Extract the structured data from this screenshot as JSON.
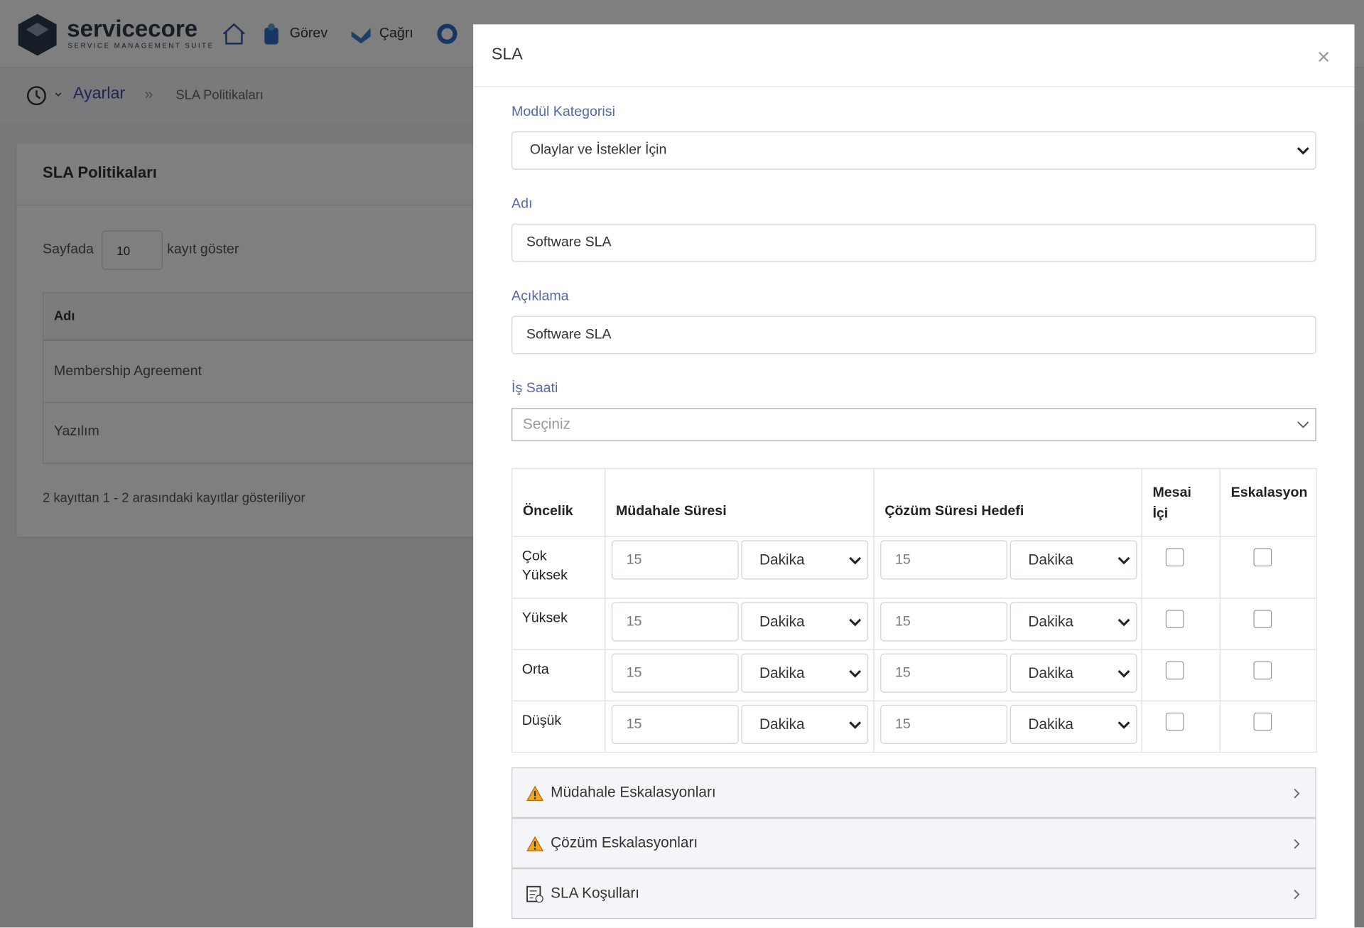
{
  "header": {
    "logo": "servicecore",
    "logo_tagline": "SERVICE MANAGEMENT SUITE",
    "nav": [
      "Görev",
      "Çağrı"
    ]
  },
  "breadcrumb": {
    "section": "Ayarlar",
    "page": "SLA Politikaları"
  },
  "panel": {
    "title": "SLA Politikaları",
    "length_prefix": "Sayfada",
    "length_value": 10,
    "length_suffix": "kayıt göster",
    "table": {
      "header": "Adı",
      "rows": [
        "Membership Agreement",
        "Yazılım"
      ]
    },
    "info": "2 kayıttan 1 - 2 arasındaki kayıtlar gösteriliyor"
  },
  "modal": {
    "title": "SLA",
    "close": "×",
    "fields": [
      {
        "label": "Modül Kategorisi",
        "value": "Olaylar ve İstekler İçin"
      },
      {
        "label": "Adı",
        "value": "Software SLA"
      },
      {
        "label": "Açıklama",
        "value": "Software SLA"
      },
      {
        "label": "İş Saati",
        "placeholder": "Seçiniz"
      }
    ],
    "table": {
      "headers": [
        "Öncelik",
        "Müdahale Süresi",
        "Çözüm Süresi Hedefi",
        "Mesai İçi",
        "Eskalasyon"
      ],
      "rows": [
        {
          "priority": "Çok Yüksek",
          "response": 15,
          "response_unit": "Dakika",
          "resolution": 15,
          "resolution_unit": "Dakika"
        },
        {
          "priority": "Yüksek",
          "response": 15,
          "response_unit": "Dakika",
          "resolution": 15,
          "resolution_unit": "Dakika"
        },
        {
          "priority": "Orta",
          "response": 15,
          "response_unit": "Dakika",
          "resolution": 15,
          "resolution_unit": "Dakika"
        },
        {
          "priority": "Düşük",
          "response": 15,
          "response_unit": "Dakika",
          "resolution": 15,
          "resolution_unit": "Dakika"
        }
      ]
    },
    "sections": [
      "Müdahale Eskalasyonları",
      "Çözüm Eskalasyonları",
      "SLA Koşulları"
    ]
  }
}
